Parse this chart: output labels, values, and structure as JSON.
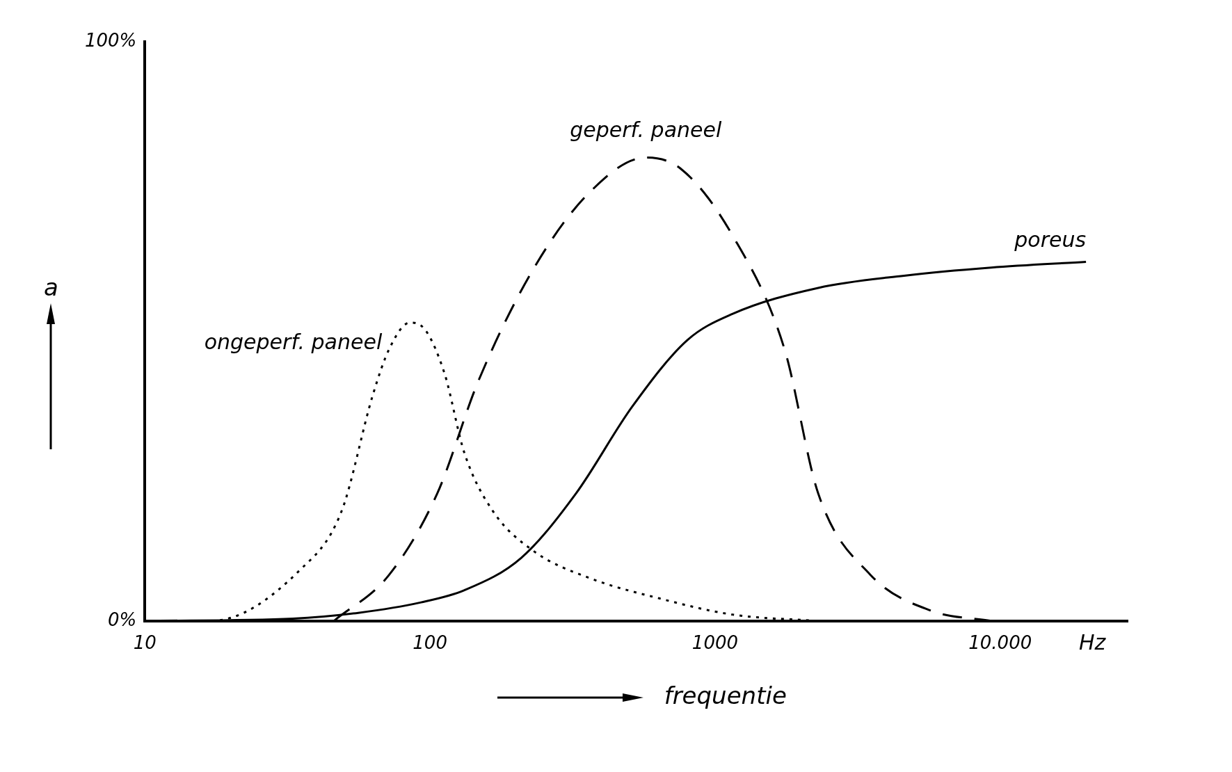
{
  "chart_data": {
    "type": "line",
    "xlabel": "frequentie",
    "ylabel": "a",
    "log": "x",
    "grid": false,
    "legend": false,
    "marker": "none",
    "xlim": [
      10,
      28000
    ],
    "xticks": [
      10,
      100,
      1000,
      {
        "value": 10000,
        "label": "10.000"
      }
    ],
    "ylim": [
      0,
      100
    ],
    "yticks": [
      {
        "value": 0,
        "label": "0%"
      },
      {
        "value": 100,
        "label": "100%"
      }
    ],
    "annotations": [
      "Hz"
    ],
    "series": [
      {
        "name": "ongeperf. paneel",
        "color": "#000000",
        "line_style": "dotted",
        "x": [
          10,
          17,
          35,
          49,
          63,
          72,
          85,
          93,
          112,
          132,
          166,
          232,
          363,
          637,
          1150,
          2300
        ],
        "values": [
          0,
          0,
          8.8,
          19,
          39,
          47,
          51.5,
          51,
          43,
          29,
          19,
          12,
          7.4,
          3.9,
          1.1,
          0
        ]
      },
      {
        "name": "geperf. paneel",
        "color": "#000000",
        "line_style": "dashed",
        "x": [
          46,
          72,
          106,
          148,
          232,
          363,
          571,
          761,
          1150,
          1750,
          2300,
          3500,
          5700,
          9300
        ],
        "values": [
          0,
          8,
          22,
          41.5,
          61,
          74,
          80,
          78,
          66.6,
          47,
          22,
          8,
          1.8,
          0
        ]
      },
      {
        "name": "poreus",
        "color": "#000000",
        "line_style": "solid",
        "x": [
          10,
          33,
          56,
          93,
          132,
          209,
          325,
          512,
          800,
          1150,
          2300,
          4600,
          9300,
          20000
        ],
        "values": [
          0,
          0.4,
          1.4,
          3.2,
          5.3,
          10.9,
          22,
          37,
          48.5,
          53,
          57.5,
          59.6,
          61,
          62
        ]
      }
    ]
  }
}
